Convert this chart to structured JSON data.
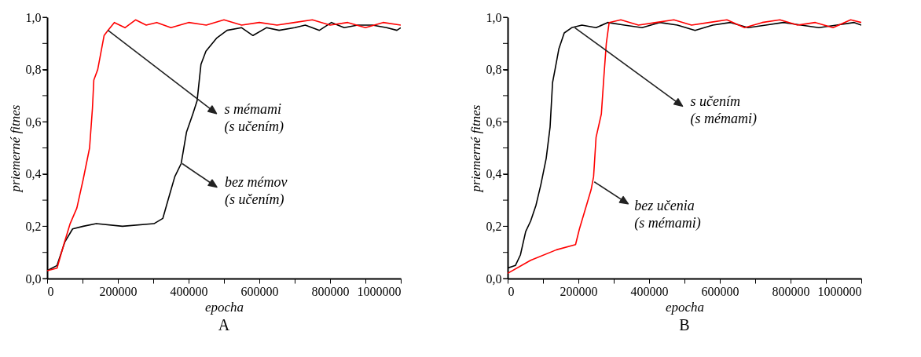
{
  "chart_data": [
    {
      "type": "line",
      "title": "A",
      "xlabel": "epocha",
      "ylabel": "priemerné fitnes",
      "xlim": [
        0,
        1000000
      ],
      "ylim": [
        0,
        1
      ],
      "xticks": [
        0,
        {
          "value": 100000,
          "label": null
        },
        200000,
        {
          "value": 300000,
          "label": null
        },
        400000,
        {
          "value": 500000,
          "label": null
        },
        600000,
        {
          "value": 700000,
          "label": null
        },
        800000,
        {
          "value": 900000,
          "label": null
        },
        1000000
      ],
      "yticks": [
        {
          "value": 0,
          "label": "0,0"
        },
        {
          "value": 0.1,
          "label": null
        },
        {
          "value": 0.2,
          "label": "0,2"
        },
        {
          "value": 0.3,
          "label": null
        },
        {
          "value": 0.4,
          "label": "0,4"
        },
        {
          "value": 0.5,
          "label": null
        },
        {
          "value": 0.6,
          "label": "0,6"
        },
        {
          "value": 0.7,
          "label": null
        },
        {
          "value": 0.8,
          "label": "0,8"
        },
        {
          "value": 0.9,
          "label": null
        },
        {
          "value": 1,
          "label": "1,0"
        }
      ],
      "grid": false,
      "series": [
        {
          "color": "#000000",
          "x": [
            0,
            28000,
            50000,
            72000,
            102000,
            139000,
            213000,
            302000,
            327000,
            346000,
            361000,
            379000,
            394000,
            412000,
            424000,
            435000,
            449000,
            479000,
            509000,
            550000,
            582000,
            620000,
            656000,
            700000,
            730000,
            770000,
            804000,
            840000,
            878000,
            920000,
            960000,
            989000,
            1000000
          ],
          "values": [
            0.03,
            0.05,
            0.14,
            0.19,
            0.2,
            0.21,
            0.2,
            0.21,
            0.23,
            0.32,
            0.39,
            0.44,
            0.56,
            0.63,
            0.68,
            0.82,
            0.87,
            0.92,
            0.95,
            0.96,
            0.93,
            0.96,
            0.95,
            0.96,
            0.97,
            0.95,
            0.98,
            0.96,
            0.97,
            0.97,
            0.96,
            0.95,
            0.96
          ]
        },
        {
          "color": "#ff0000",
          "x": [
            0,
            28000,
            47000,
            65000,
            84000,
            102000,
            120000,
            128000,
            132000,
            143000,
            161000,
            172000,
            190000,
            220000,
            250000,
            280000,
            310000,
            350000,
            400000,
            450000,
            500000,
            550000,
            600000,
            650000,
            700000,
            750000,
            800000,
            850000,
            900000,
            950000,
            1000000
          ],
          "values": [
            0.03,
            0.04,
            0.13,
            0.21,
            0.27,
            0.38,
            0.5,
            0.65,
            0.76,
            0.8,
            0.93,
            0.95,
            0.98,
            0.96,
            0.99,
            0.97,
            0.98,
            0.96,
            0.98,
            0.97,
            0.99,
            0.97,
            0.98,
            0.97,
            0.98,
            0.99,
            0.97,
            0.98,
            0.96,
            0.98,
            0.97
          ]
        }
      ],
      "annotations": [
        {
          "text": "s mémami (s učením)",
          "x": 172000,
          "y": 0.95
        },
        {
          "text": "bez mémov (s učením)",
          "x": 382000,
          "y": 0.44
        }
      ]
    },
    {
      "type": "line",
      "title": "B",
      "xlabel": "epocha",
      "ylabel": "priemerné fitnes",
      "xlim": [
        0,
        1000000
      ],
      "ylim": [
        0,
        1
      ],
      "xticks": [
        0,
        {
          "value": 100000,
          "label": null
        },
        200000,
        {
          "value": 300000,
          "label": null
        },
        400000,
        {
          "value": 500000,
          "label": null
        },
        600000,
        {
          "value": 700000,
          "label": null
        },
        800000,
        {
          "value": 900000,
          "label": null
        },
        1000000
      ],
      "yticks": [
        {
          "value": 0,
          "label": "0,0"
        },
        {
          "value": 0.1,
          "label": null
        },
        {
          "value": 0.2,
          "label": "0,2"
        },
        {
          "value": 0.3,
          "label": null
        },
        {
          "value": 0.4,
          "label": "0,4"
        },
        {
          "value": 0.5,
          "label": null
        },
        {
          "value": 0.6,
          "label": "0,6"
        },
        {
          "value": 0.7,
          "label": null
        },
        {
          "value": 0.8,
          "label": "0,8"
        },
        {
          "value": 0.9,
          "label": null
        },
        {
          "value": 1,
          "label": "1,0"
        }
      ],
      "grid": false,
      "series": [
        {
          "color": "#000000",
          "x": [
            0,
            22000,
            36000,
            51000,
            65000,
            80000,
            94000,
            109000,
            120000,
            127000,
            134000,
            145000,
            160000,
            181000,
            210000,
            250000,
            283000,
            330000,
            380000,
            430000,
            480000,
            530000,
            580000,
            630000,
            680000,
            730000,
            780000,
            830000,
            880000,
            930000,
            980000,
            1000000
          ],
          "values": [
            0.04,
            0.05,
            0.09,
            0.18,
            0.22,
            0.28,
            0.36,
            0.46,
            0.58,
            0.75,
            0.8,
            0.88,
            0.94,
            0.96,
            0.97,
            0.96,
            0.98,
            0.97,
            0.96,
            0.98,
            0.97,
            0.95,
            0.97,
            0.98,
            0.96,
            0.97,
            0.98,
            0.97,
            0.96,
            0.97,
            0.98,
            0.97
          ]
        },
        {
          "color": "#ff0000",
          "x": [
            0,
            65000,
            138000,
            192000,
            203000,
            225000,
            236000,
            243000,
            250000,
            265000,
            272000,
            279000,
            287000,
            320000,
            370000,
            420000,
            470000,
            520000,
            570000,
            620000,
            670000,
            720000,
            770000,
            820000,
            870000,
            920000,
            970000,
            1000000
          ],
          "values": [
            0.02,
            0.07,
            0.11,
            0.13,
            0.19,
            0.29,
            0.34,
            0.39,
            0.54,
            0.63,
            0.77,
            0.9,
            0.98,
            0.99,
            0.97,
            0.98,
            0.99,
            0.97,
            0.98,
            0.99,
            0.96,
            0.98,
            0.99,
            0.97,
            0.98,
            0.96,
            0.99,
            0.98
          ]
        }
      ],
      "annotations": [
        {
          "text": "s učením (s mémami)",
          "x": 190000,
          "y": 0.96
        },
        {
          "text": "bez učenia (s mémami)",
          "x": 245000,
          "y": 0.37
        }
      ]
    }
  ]
}
